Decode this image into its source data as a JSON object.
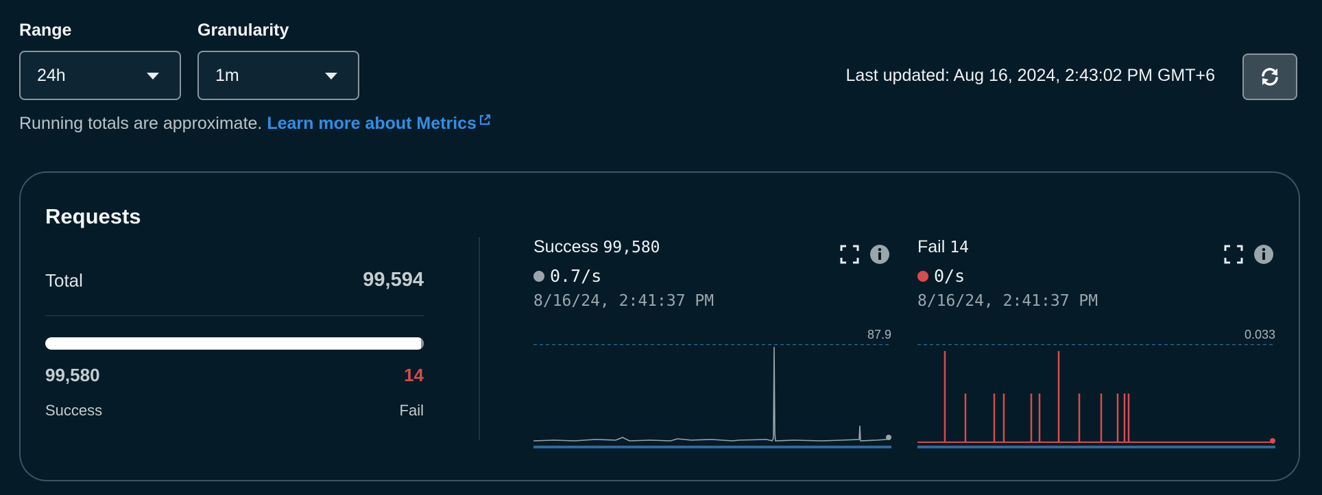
{
  "controls": {
    "range": {
      "label": "Range",
      "value": "24h"
    },
    "granularity": {
      "label": "Granularity",
      "value": "1m"
    }
  },
  "last_updated": "Last updated: Aug 16, 2024, 2:43:02 PM GMT+6",
  "note": {
    "text": "Running totals are approximate. ",
    "link_text": "Learn more about Metrics"
  },
  "requests": {
    "title": "Requests",
    "total_label": "Total",
    "total_value": "99,594",
    "success_value": "99,580",
    "fail_value": "14",
    "success_label": "Success",
    "fail_label": "Fail",
    "success_fraction": 0.99986
  },
  "metrics": {
    "success": {
      "label": "Success",
      "count": "99,580",
      "rate": "0.7/s",
      "timestamp": "8/16/24, 2:41:37 PM",
      "max": "87.9",
      "color": "#9aa6ac"
    },
    "fail": {
      "label": "Fail",
      "count": "14",
      "rate": "0/s",
      "timestamp": "8/16/24, 2:41:37 PM",
      "max": "0.033",
      "color": "#d94b4b"
    }
  },
  "icons": {
    "refresh": "refresh-icon",
    "external": "external-link-icon",
    "expand": "expand-icon",
    "info": "info-icon"
  }
}
